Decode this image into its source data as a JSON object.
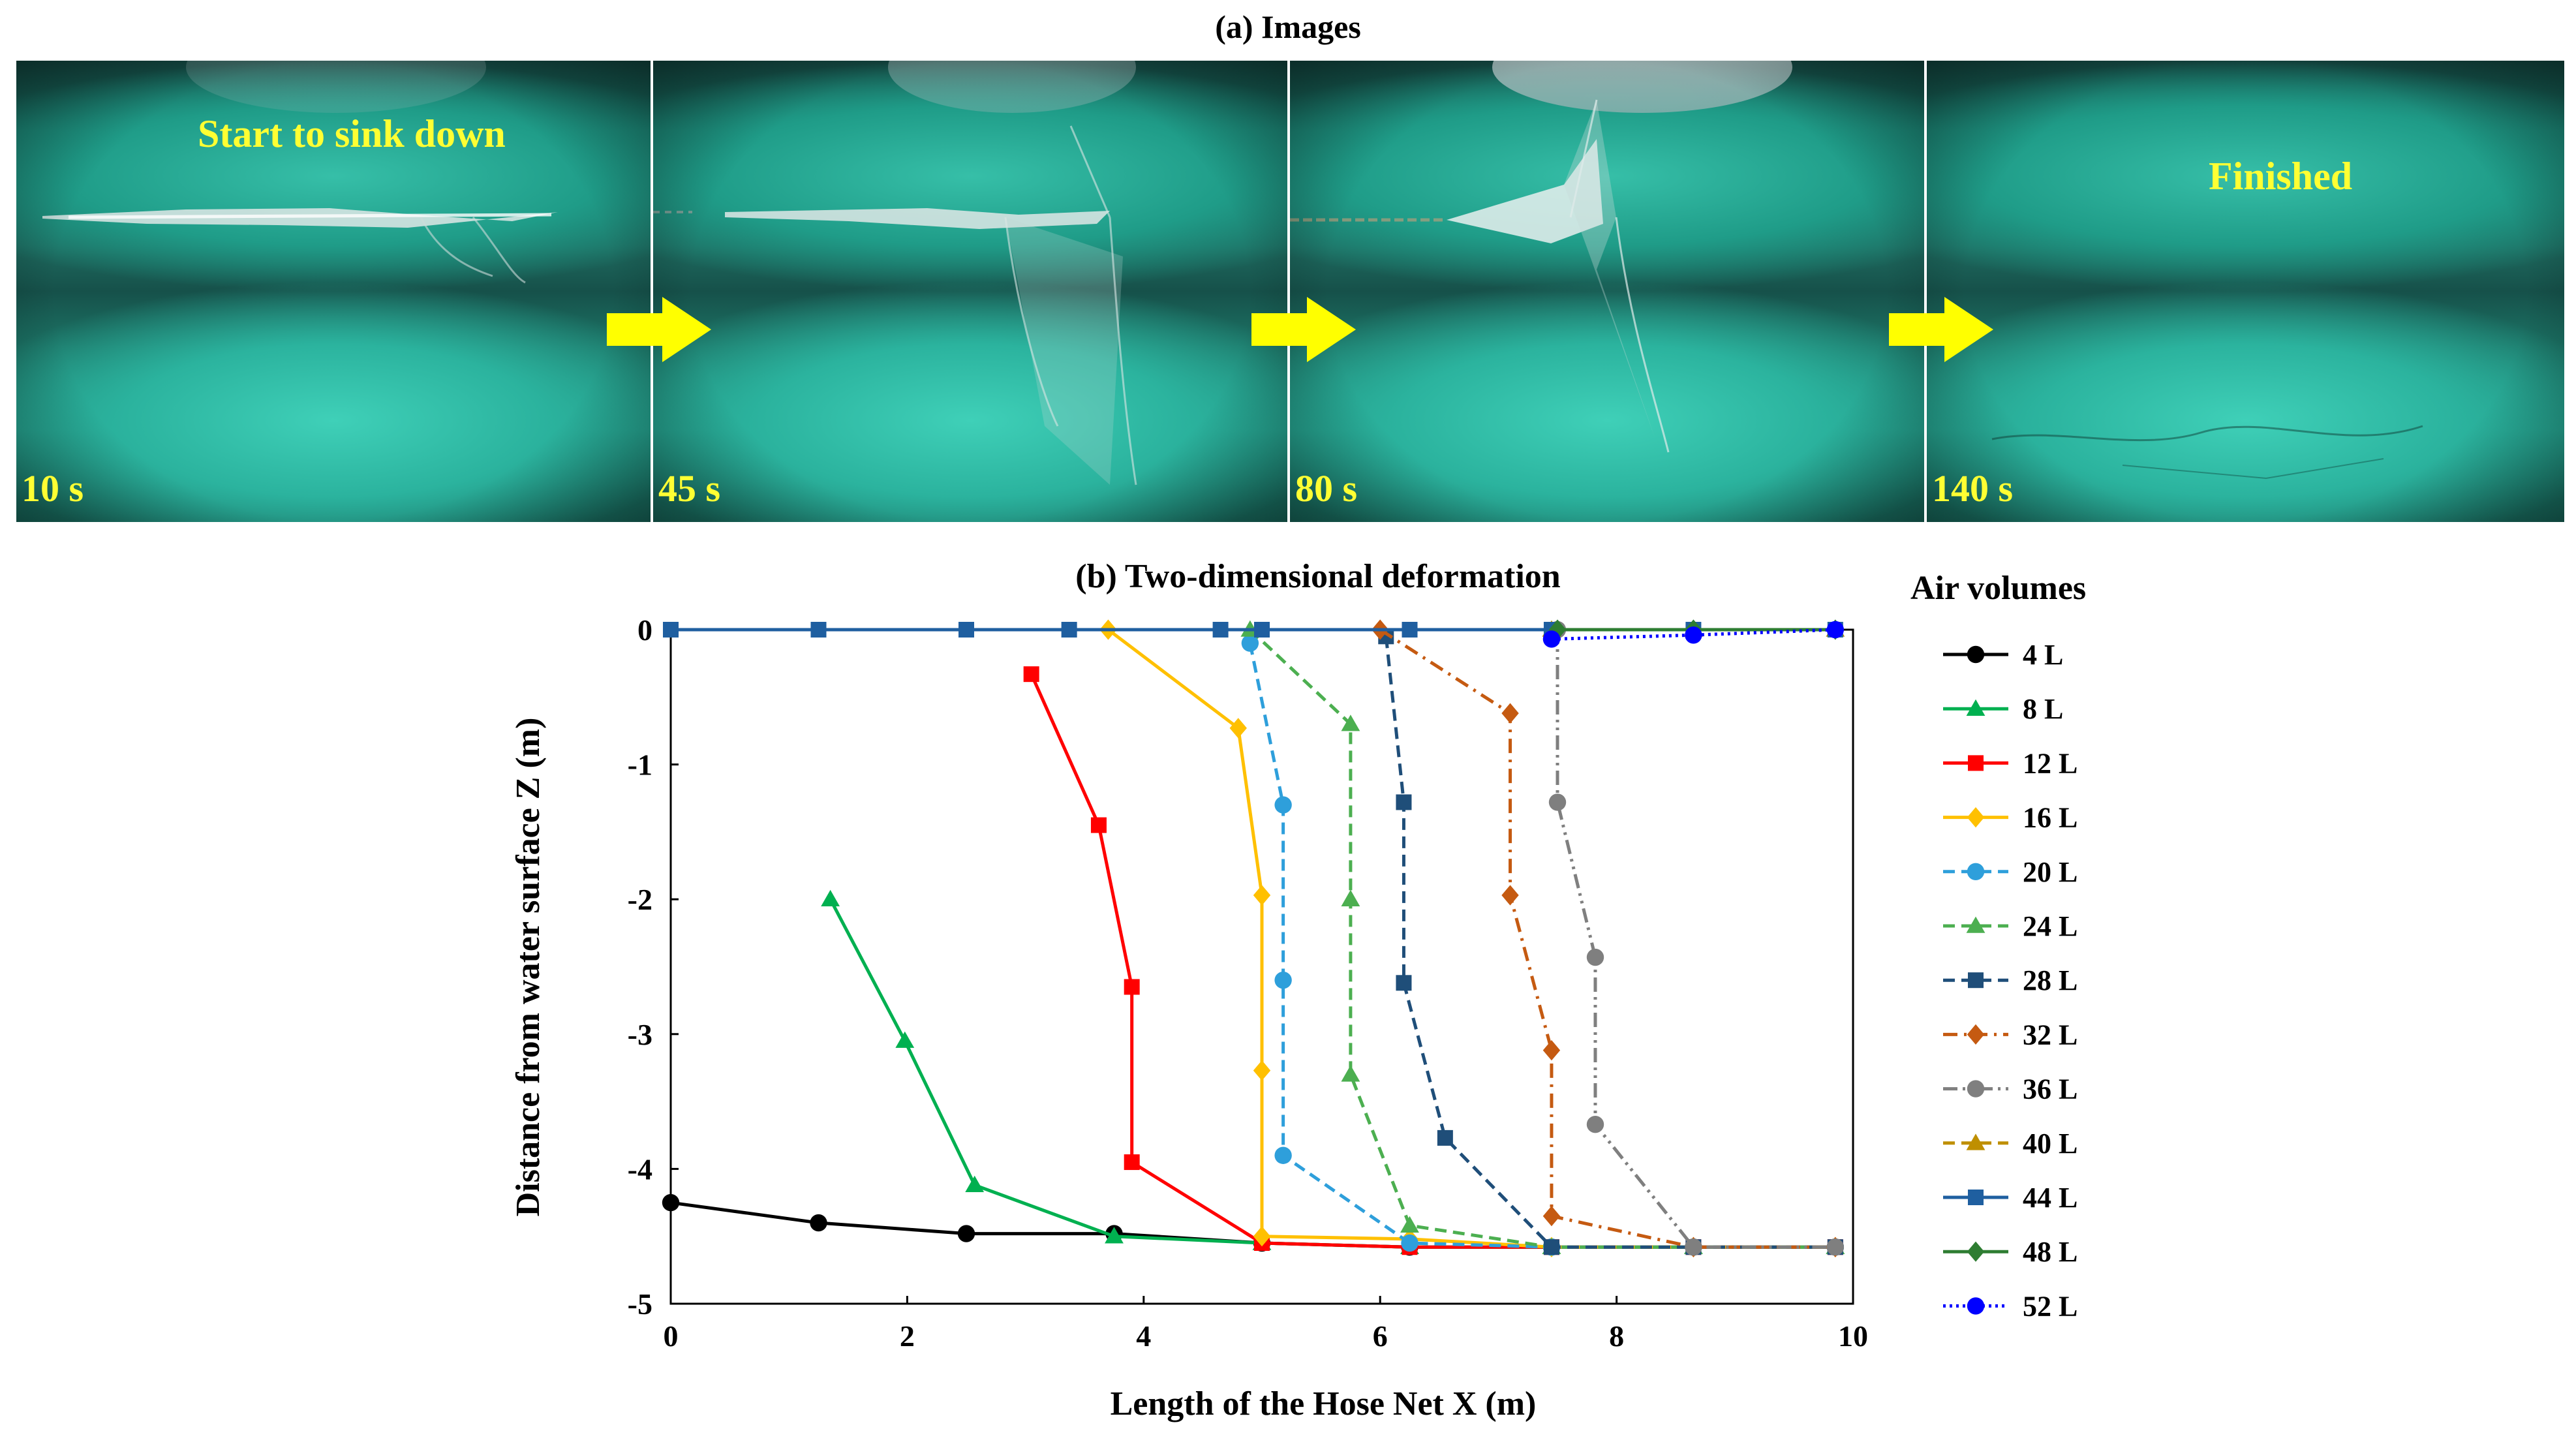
{
  "panel_a": {
    "title": "(a) Images",
    "frames": [
      {
        "time": "10 s",
        "caption": "Start to sink down"
      },
      {
        "time": "45 s",
        "caption": ""
      },
      {
        "time": "80 s",
        "caption": ""
      },
      {
        "time": "140 s",
        "caption": "Finished"
      }
    ],
    "arrow_color": "#ffff00"
  },
  "chart_data": {
    "type": "line",
    "title": "(b) Two-dimensional deformation",
    "xlabel": "Length of the Hose Net X (m)",
    "ylabel": "Distance from water surface Z (m)",
    "xlim": [
      0,
      10
    ],
    "ylim": [
      -5,
      0
    ],
    "xticks": [
      "0",
      "2",
      "4",
      "6",
      "8",
      "10"
    ],
    "yticks": [
      "0",
      "-1",
      "-2",
      "-3",
      "-4",
      "-5"
    ],
    "grid": false,
    "legend_title": "Air volumes",
    "legend_position": "right",
    "series": [
      {
        "name": "4 L",
        "color": "#000000",
        "marker": "circle",
        "dash": "solid",
        "points": [
          [
            0,
            -4.25
          ],
          [
            1.25,
            -4.4
          ],
          [
            2.5,
            -4.48
          ],
          [
            3.75,
            -4.48
          ],
          [
            5,
            -4.55
          ],
          [
            6.25,
            -4.58
          ],
          [
            7.45,
            -4.58
          ],
          [
            8.65,
            -4.58
          ],
          [
            9.85,
            -4.58
          ]
        ]
      },
      {
        "name": "8 L",
        "color": "#00b050",
        "marker": "triangle",
        "dash": "solid",
        "points": [
          [
            1.35,
            -2.0
          ],
          [
            1.98,
            -3.05
          ],
          [
            2.57,
            -4.12
          ],
          [
            3.75,
            -4.5
          ],
          [
            5,
            -4.55
          ],
          [
            6.25,
            -4.58
          ],
          [
            7.45,
            -4.58
          ],
          [
            8.65,
            -4.58
          ],
          [
            9.85,
            -4.58
          ]
        ]
      },
      {
        "name": "12 L",
        "color": "#ff0000",
        "marker": "square",
        "dash": "solid",
        "points": [
          [
            3.05,
            -0.33
          ],
          [
            3.62,
            -1.45
          ],
          [
            3.9,
            -2.65
          ],
          [
            3.9,
            -3.95
          ],
          [
            5,
            -4.55
          ],
          [
            6.25,
            -4.58
          ],
          [
            7.45,
            -4.58
          ],
          [
            8.65,
            -4.58
          ],
          [
            9.85,
            -4.58
          ]
        ]
      },
      {
        "name": "16 L",
        "color": "#ffc000",
        "marker": "diamond",
        "dash": "solid",
        "points": [
          [
            3.7,
            0
          ],
          [
            4.8,
            -0.73
          ],
          [
            5.0,
            -1.97
          ],
          [
            5.0,
            -3.27
          ],
          [
            5.0,
            -4.5
          ],
          [
            6.25,
            -4.52
          ],
          [
            7.45,
            -4.58
          ],
          [
            8.65,
            -4.58
          ],
          [
            9.85,
            -4.58
          ]
        ]
      },
      {
        "name": "20 L",
        "color": "#2e9fdb",
        "marker": "circle",
        "dash": "dash",
        "points": [
          [
            4.9,
            -0.1
          ],
          [
            5.18,
            -1.3
          ],
          [
            5.18,
            -2.6
          ],
          [
            5.18,
            -3.9
          ],
          [
            6.25,
            -4.55
          ],
          [
            7.45,
            -4.58
          ],
          [
            8.65,
            -4.58
          ],
          [
            9.85,
            -4.58
          ]
        ]
      },
      {
        "name": "24 L",
        "color": "#4caf50",
        "marker": "triangle",
        "dash": "dash",
        "points": [
          [
            4.9,
            0
          ],
          [
            5.75,
            -0.7
          ],
          [
            5.75,
            -2.0
          ],
          [
            5.75,
            -3.3
          ],
          [
            6.25,
            -4.42
          ],
          [
            7.45,
            -4.58
          ],
          [
            8.65,
            -4.58
          ],
          [
            9.85,
            -4.58
          ]
        ]
      },
      {
        "name": "28 L",
        "color": "#1f4e79",
        "marker": "square",
        "dash": "dash",
        "points": [
          [
            6.05,
            -0.05
          ],
          [
            6.2,
            -1.28
          ],
          [
            6.2,
            -2.62
          ],
          [
            6.55,
            -3.77
          ],
          [
            7.45,
            -4.58
          ],
          [
            8.65,
            -4.58
          ],
          [
            9.85,
            -4.58
          ]
        ]
      },
      {
        "name": "32 L",
        "color": "#c55a11",
        "marker": "diamond",
        "dash": "dashdot",
        "points": [
          [
            6.0,
            0
          ],
          [
            7.1,
            -0.62
          ],
          [
            7.1,
            -1.97
          ],
          [
            7.45,
            -3.12
          ],
          [
            7.45,
            -4.35
          ],
          [
            8.65,
            -4.58
          ],
          [
            9.85,
            -4.58
          ]
        ]
      },
      {
        "name": "36 L",
        "color": "#7f7f7f",
        "marker": "circle",
        "dash": "dashdotdot",
        "points": [
          [
            7.5,
            0
          ],
          [
            7.5,
            -1.28
          ],
          [
            7.82,
            -2.43
          ],
          [
            7.82,
            -3.67
          ],
          [
            8.65,
            -4.58
          ],
          [
            9.85,
            -4.58
          ]
        ]
      },
      {
        "name": "40 L",
        "color": "#bf8f00",
        "marker": "triangle",
        "dash": "dash",
        "points": [
          [
            7.45,
            0
          ],
          [
            8.65,
            0
          ],
          [
            9.85,
            0
          ]
        ]
      },
      {
        "name": "44 L",
        "color": "#1f5fa0",
        "marker": "square",
        "dash": "solid",
        "points": [
          [
            0,
            0
          ],
          [
            1.25,
            0
          ],
          [
            2.5,
            0
          ],
          [
            3.37,
            0
          ],
          [
            4.65,
            0
          ],
          [
            5.0,
            0
          ],
          [
            6.25,
            0
          ],
          [
            7.45,
            0
          ],
          [
            8.65,
            0
          ],
          [
            9.85,
            0
          ]
        ]
      },
      {
        "name": "48 L",
        "color": "#2e7d32",
        "marker": "diamond",
        "dash": "solid",
        "points": [
          [
            7.5,
            0
          ],
          [
            8.65,
            0
          ],
          [
            9.85,
            0
          ]
        ]
      },
      {
        "name": "52 L",
        "color": "#0000ff",
        "marker": "circle",
        "dash": "dot",
        "points": [
          [
            7.45,
            -0.07
          ],
          [
            8.65,
            -0.04
          ],
          [
            9.85,
            0
          ]
        ]
      }
    ]
  }
}
